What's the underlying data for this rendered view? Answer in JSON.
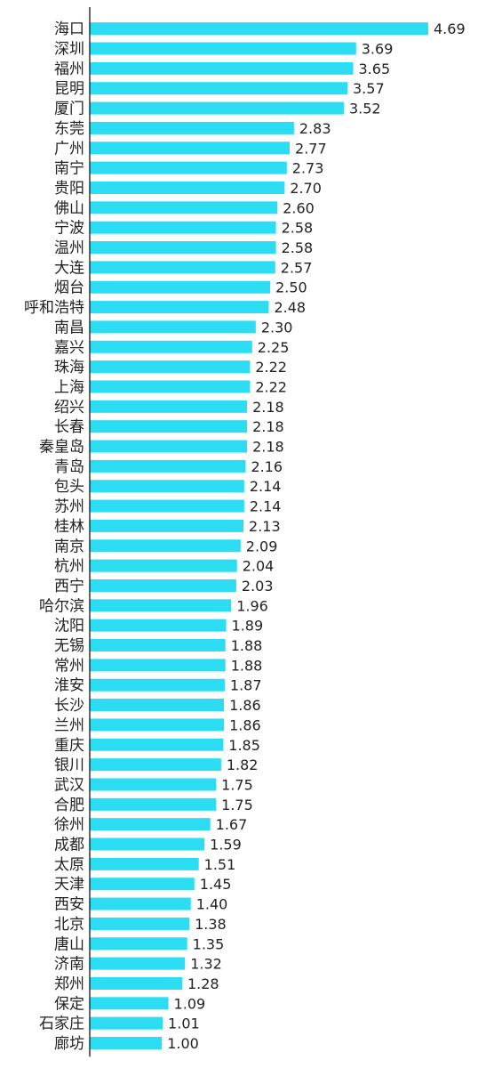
{
  "colors": {
    "bar": "#2bdcf2",
    "axis": "#333333",
    "text": "#222222"
  },
  "chart_data": {
    "type": "bar",
    "orientation": "horizontal",
    "title": "",
    "xlabel": "",
    "ylabel": "",
    "grid": false,
    "xlim": [
      0,
      4.69
    ],
    "categories": [
      "海口",
      "深圳",
      "福州",
      "昆明",
      "厦门",
      "东莞",
      "广州",
      "南宁",
      "贵阳",
      "佛山",
      "宁波",
      "温州",
      "大连",
      "烟台",
      "呼和浩特",
      "南昌",
      "嘉兴",
      "珠海",
      "上海",
      "绍兴",
      "长春",
      "秦皇岛",
      "青岛",
      "包头",
      "苏州",
      "桂林",
      "南京",
      "杭州",
      "西宁",
      "哈尔滨",
      "沈阳",
      "无锡",
      "常州",
      "淮安",
      "长沙",
      "兰州",
      "重庆",
      "银川",
      "武汉",
      "合肥",
      "徐州",
      "成都",
      "太原",
      "天津",
      "西安",
      "北京",
      "唐山",
      "济南",
      "郑州",
      "保定",
      "石家庄",
      "廊坊"
    ],
    "values": [
      4.69,
      3.69,
      3.65,
      3.57,
      3.52,
      2.83,
      2.77,
      2.73,
      2.7,
      2.6,
      2.58,
      2.58,
      2.57,
      2.5,
      2.48,
      2.3,
      2.25,
      2.22,
      2.22,
      2.18,
      2.18,
      2.18,
      2.16,
      2.14,
      2.14,
      2.13,
      2.09,
      2.04,
      2.03,
      1.96,
      1.89,
      1.88,
      1.88,
      1.87,
      1.86,
      1.86,
      1.85,
      1.82,
      1.75,
      1.75,
      1.67,
      1.59,
      1.51,
      1.45,
      1.4,
      1.38,
      1.35,
      1.32,
      1.28,
      1.09,
      1.01,
      1.0
    ],
    "value_labels": [
      "4.69",
      "3.69",
      "3.65",
      "3.57",
      "3.52",
      "2.83",
      "2.77",
      "2.73",
      "2.70",
      "2.60",
      "2.58",
      "2.58",
      "2.57",
      "2.50",
      "2.48",
      "2.30",
      "2.25",
      "2.22",
      "2.22",
      "2.18",
      "2.18",
      "2.18",
      "2.16",
      "2.14",
      "2.14",
      "2.13",
      "2.09",
      "2.04",
      "2.03",
      "1.96",
      "1.89",
      "1.88",
      "1.88",
      "1.87",
      "1.86",
      "1.86",
      "1.85",
      "1.82",
      "1.75",
      "1.75",
      "1.67",
      "1.59",
      "1.51",
      "1.45",
      "1.40",
      "1.38",
      "1.35",
      "1.32",
      "1.28",
      "1.09",
      "1.01",
      "1.00"
    ]
  }
}
